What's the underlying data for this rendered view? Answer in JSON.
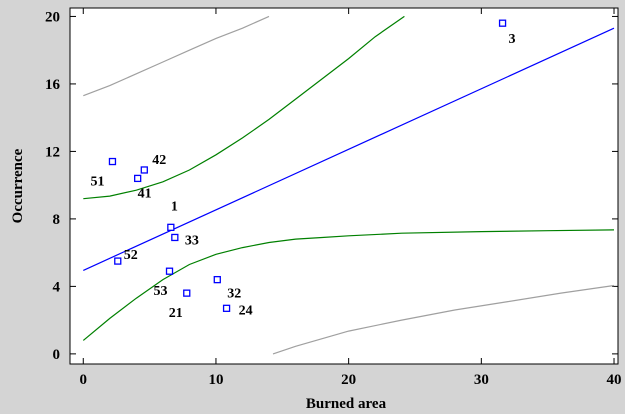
{
  "chart_data": {
    "type": "scatter",
    "title": "",
    "xlabel": "Burned area",
    "ylabel": "Occurrence",
    "xlim": [
      -1,
      40.3
    ],
    "ylim": [
      -0.6,
      20.5
    ],
    "xticks": [
      0,
      10,
      20,
      30,
      40
    ],
    "yticks": [
      0,
      4,
      8,
      12,
      16,
      20
    ],
    "colors": {
      "fit": "#0000ff",
      "confidence": "#008000",
      "prediction": "#a0a0a0",
      "points": "#0000ff",
      "plot_bg": "#ffffff",
      "frame": "#d4d4d4"
    },
    "points": [
      {
        "label": "3",
        "x": 31.6,
        "y": 19.6
      },
      {
        "label": "42",
        "x": 4.6,
        "y": 10.9
      },
      {
        "label": "51",
        "x": 2.2,
        "y": 11.4
      },
      {
        "label": "41",
        "x": 4.1,
        "y": 10.4
      },
      {
        "label": "1",
        "x": 6.6,
        "y": 7.5
      },
      {
        "label": "33",
        "x": 6.9,
        "y": 6.9
      },
      {
        "label": "52",
        "x": 2.6,
        "y": 5.5
      },
      {
        "label": "53",
        "x": 6.5,
        "y": 4.9
      },
      {
        "label": "32",
        "x": 10.1,
        "y": 4.4
      },
      {
        "label": "21",
        "x": 7.8,
        "y": 3.6
      },
      {
        "label": "24",
        "x": 10.8,
        "y": 2.7
      }
    ],
    "fit_line": [
      [
        0,
        4.95
      ],
      [
        40,
        19.3
      ]
    ],
    "confidence_upper": [
      [
        0,
        9.2
      ],
      [
        2,
        9.35
      ],
      [
        4,
        9.7
      ],
      [
        6,
        10.2
      ],
      [
        8,
        10.9
      ],
      [
        10,
        11.8
      ],
      [
        12,
        12.8
      ],
      [
        14,
        13.9
      ],
      [
        16,
        15.1
      ],
      [
        18,
        16.3
      ],
      [
        20,
        17.5
      ],
      [
        22,
        18.8
      ],
      [
        24.2,
        20
      ]
    ],
    "confidence_lower": [
      [
        0,
        0.8
      ],
      [
        2,
        2.1
      ],
      [
        4,
        3.3
      ],
      [
        6,
        4.4
      ],
      [
        8,
        5.3
      ],
      [
        10,
        5.9
      ],
      [
        12,
        6.3
      ],
      [
        14,
        6.6
      ],
      [
        16,
        6.8
      ],
      [
        18,
        6.9
      ],
      [
        20,
        7.0
      ],
      [
        24,
        7.15
      ],
      [
        30,
        7.25
      ],
      [
        35,
        7.3
      ],
      [
        40,
        7.35
      ]
    ],
    "prediction_upper": [
      [
        0,
        15.3
      ],
      [
        2,
        15.9
      ],
      [
        4,
        16.6
      ],
      [
        6,
        17.3
      ],
      [
        8,
        18.0
      ],
      [
        10,
        18.7
      ],
      [
        12,
        19.3
      ],
      [
        14,
        20.0
      ]
    ],
    "prediction_lower": [
      [
        14.3,
        0
      ],
      [
        16,
        0.45
      ],
      [
        18,
        0.9
      ],
      [
        20,
        1.35
      ],
      [
        24,
        2.0
      ],
      [
        28,
        2.6
      ],
      [
        32,
        3.1
      ],
      [
        36,
        3.6
      ],
      [
        40,
        4.05
      ]
    ]
  }
}
